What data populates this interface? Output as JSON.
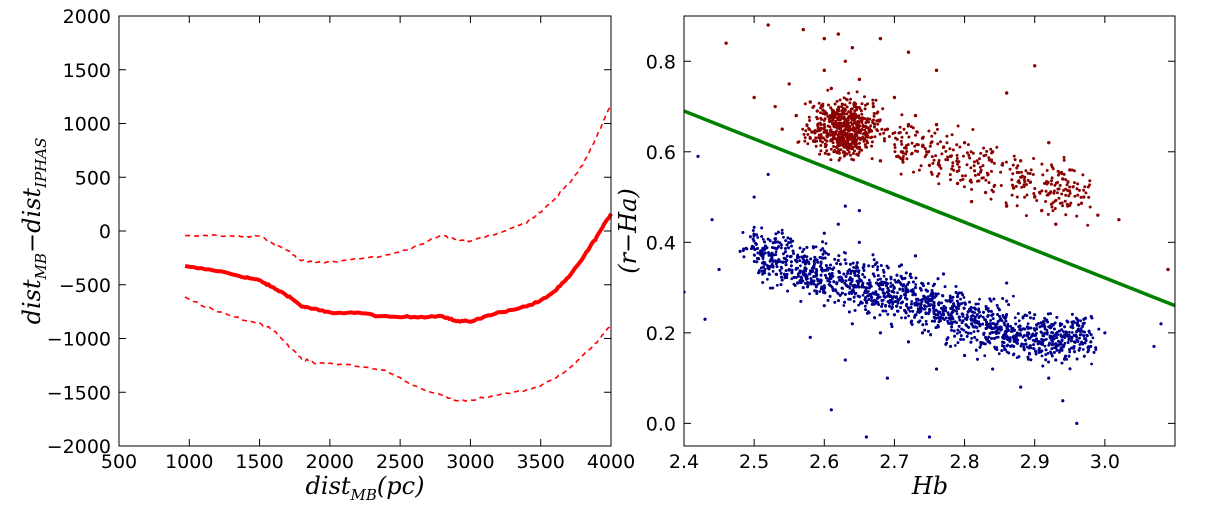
{
  "chart_data": [
    {
      "type": "line",
      "title": "",
      "xlabel": {
        "main": "dist",
        "sub": "MB",
        "suffix": "(pc)"
      },
      "ylabel": {
        "main1": "dist",
        "sub1": "MB",
        "minus": "−",
        "main2": "dist",
        "sub2": "IPHAS"
      },
      "xlim": [
        500,
        4000
      ],
      "ylim": [
        -2000,
        2000
      ],
      "x_ticks": [
        500,
        1000,
        1500,
        2000,
        2500,
        3000,
        3500,
        4000
      ],
      "y_ticks": [
        -2000,
        -1500,
        -1000,
        -500,
        0,
        500,
        1000,
        1500,
        2000
      ],
      "x_tick_labels": [
        "500",
        "1000",
        "1500",
        "2000",
        "2500",
        "3000",
        "3500",
        "4000"
      ],
      "y_tick_labels": [
        "−2000",
        "−1500",
        "−1000",
        "−500",
        "0",
        "500",
        "1000",
        "1500",
        "2000"
      ],
      "series": [
        {
          "name": "mean",
          "style": "solid-thick",
          "color": "#ff0000",
          "x": [
            970,
            1200,
            1400,
            1500,
            1600,
            1700,
            1800,
            1900,
            2000,
            2200,
            2400,
            2600,
            2800,
            2900,
            3000,
            3200,
            3400,
            3500,
            3600,
            3700,
            3800,
            3900,
            4000
          ],
          "y": [
            -330,
            -370,
            -430,
            -460,
            -530,
            -600,
            -700,
            -730,
            -760,
            -760,
            -800,
            -800,
            -790,
            -840,
            -840,
            -760,
            -700,
            -650,
            -560,
            -430,
            -250,
            -50,
            160
          ]
        },
        {
          "name": "upper",
          "style": "dashed",
          "color": "#ff0000",
          "x": [
            970,
            1200,
            1400,
            1500,
            1600,
            1700,
            1800,
            1900,
            2000,
            2200,
            2400,
            2600,
            2800,
            2900,
            3000,
            3200,
            3400,
            3500,
            3600,
            3700,
            3800,
            3900,
            4000
          ],
          "y": [
            -40,
            -40,
            -50,
            -40,
            -120,
            -180,
            -280,
            -290,
            -290,
            -260,
            -230,
            -150,
            -40,
            -80,
            -90,
            -20,
            80,
            180,
            300,
            440,
            620,
            880,
            1180
          ]
        },
        {
          "name": "lower",
          "style": "dashed",
          "color": "#ff0000",
          "x": [
            970,
            1200,
            1400,
            1500,
            1600,
            1700,
            1800,
            1900,
            2000,
            2200,
            2400,
            2600,
            2800,
            2900,
            3000,
            3200,
            3400,
            3500,
            3600,
            3700,
            3800,
            3900,
            4000
          ],
          "y": [
            -620,
            -750,
            -830,
            -860,
            -920,
            -1060,
            -1190,
            -1230,
            -1230,
            -1260,
            -1300,
            -1440,
            -1530,
            -1580,
            -1580,
            -1520,
            -1480,
            -1440,
            -1370,
            -1280,
            -1160,
            -1030,
            -880
          ]
        }
      ]
    },
    {
      "type": "scatter",
      "title": "",
      "xlabel": "Hb",
      "ylabel": "(r−Ha)",
      "xlim": [
        2.4,
        3.1
      ],
      "ylim": [
        -0.05,
        0.9
      ],
      "x_ticks": [
        2.4,
        2.5,
        2.6,
        2.7,
        2.8,
        2.9,
        3.0
      ],
      "y_ticks": [
        0.0,
        0.2,
        0.4,
        0.6,
        0.8
      ],
      "x_tick_labels": [
        "2.4",
        "2.5",
        "2.6",
        "2.7",
        "2.8",
        "2.9",
        "3.0"
      ],
      "y_tick_labels": [
        "0.0",
        "0.2",
        "0.4",
        "0.6",
        "0.8"
      ],
      "divider_line": {
        "color": "#008000",
        "x": [
          2.4,
          3.1
        ],
        "y": [
          0.69,
          0.26
        ]
      },
      "series": [
        {
          "name": "above line",
          "color": "#8b0000",
          "points": [
            [
              2.46,
              0.84
            ],
            [
              2.52,
              0.88
            ],
            [
              2.57,
              0.87
            ],
            [
              2.6,
              0.85
            ],
            [
              2.62,
              0.86
            ],
            [
              2.64,
              0.83
            ],
            [
              2.68,
              0.85
            ],
            [
              2.72,
              0.82
            ],
            [
              2.76,
              0.78
            ],
            [
              2.9,
              0.79
            ],
            [
              2.86,
              0.73
            ],
            [
              2.5,
              0.72
            ],
            [
              2.55,
              0.75
            ],
            [
              2.58,
              0.71
            ],
            [
              2.6,
              0.78
            ],
            [
              2.61,
              0.74
            ],
            [
              2.63,
              0.8
            ],
            [
              2.65,
              0.76
            ],
            [
              2.67,
              0.7
            ],
            [
              2.7,
              0.72
            ],
            [
              2.73,
              0.68
            ],
            [
              2.76,
              0.66
            ],
            [
              2.8,
              0.62
            ],
            [
              2.84,
              0.6
            ],
            [
              2.88,
              0.58
            ],
            [
              2.92,
              0.62
            ],
            [
              2.95,
              0.56
            ],
            [
              2.97,
              0.5
            ],
            [
              2.99,
              0.46
            ],
            [
              2.86,
              0.48
            ],
            [
              2.82,
              0.55
            ],
            [
              2.78,
              0.59
            ],
            [
              2.74,
              0.63
            ],
            [
              2.71,
              0.6
            ],
            [
              2.68,
              0.58
            ],
            [
              2.66,
              0.64
            ],
            [
              2.64,
              0.62
            ],
            [
              2.62,
              0.6
            ],
            [
              2.6,
              0.66
            ],
            [
              2.58,
              0.63
            ],
            [
              2.56,
              0.68
            ],
            [
              2.54,
              0.65
            ],
            [
              2.53,
              0.7
            ],
            [
              2.59,
              0.69
            ],
            [
              2.63,
              0.67
            ],
            [
              2.65,
              0.61
            ],
            [
              2.69,
              0.65
            ],
            [
              2.75,
              0.57
            ],
            [
              2.79,
              0.53
            ],
            [
              2.83,
              0.51
            ],
            [
              2.87,
              0.52
            ],
            [
              2.9,
              0.5
            ],
            [
              2.93,
              0.44
            ],
            [
              3.02,
              0.45
            ],
            [
              3.09,
              0.34
            ],
            [
              2.94,
              0.54
            ],
            [
              2.91,
              0.47
            ],
            [
              2.81,
              0.49
            ],
            [
              2.77,
              0.61
            ],
            [
              2.72,
              0.66
            ]
          ]
        },
        {
          "name": "below line",
          "color": "#00008b",
          "points": [
            [
              2.42,
              0.59
            ],
            [
              2.44,
              0.45
            ],
            [
              2.45,
              0.34
            ],
            [
              2.43,
              0.23
            ],
            [
              2.4,
              0.29
            ],
            [
              2.48,
              0.38
            ],
            [
              2.5,
              0.5
            ],
            [
              2.52,
              0.55
            ],
            [
              2.54,
              0.42
            ],
            [
              2.56,
              0.36
            ],
            [
              2.58,
              0.31
            ],
            [
              2.6,
              0.38
            ],
            [
              2.62,
              0.44
            ],
            [
              2.63,
              0.48
            ],
            [
              2.65,
              0.4
            ],
            [
              2.67,
              0.33
            ],
            [
              2.69,
              0.29
            ],
            [
              2.71,
              0.35
            ],
            [
              2.73,
              0.3
            ],
            [
              2.75,
              0.26
            ],
            [
              2.77,
              0.24
            ],
            [
              2.79,
              0.28
            ],
            [
              2.81,
              0.22
            ],
            [
              2.83,
              0.19
            ],
            [
              2.85,
              0.21
            ],
            [
              2.87,
              0.17
            ],
            [
              2.89,
              0.2
            ],
            [
              2.91,
              0.16
            ],
            [
              2.93,
              0.14
            ],
            [
              2.95,
              0.19
            ],
            [
              2.97,
              0.23
            ],
            [
              2.92,
              0.1
            ],
            [
              2.88,
              0.08
            ],
            [
              2.94,
              0.05
            ],
            [
              2.96,
              0.0
            ],
            [
              2.84,
              0.12
            ],
            [
              2.8,
              0.15
            ],
            [
              2.76,
              0.12
            ],
            [
              2.72,
              0.18
            ],
            [
              2.68,
              0.2
            ],
            [
              2.64,
              0.22
            ],
            [
              2.6,
              0.26
            ],
            [
              2.57,
              0.3
            ],
            [
              2.55,
              0.34
            ],
            [
              2.53,
              0.4
            ],
            [
              2.62,
              0.36
            ],
            [
              2.66,
              0.27
            ],
            [
              2.7,
              0.24
            ],
            [
              2.74,
              0.2
            ],
            [
              2.78,
              0.17
            ],
            [
              2.82,
              0.25
            ],
            [
              2.86,
              0.27
            ],
            [
              2.9,
              0.24
            ],
            [
              2.98,
              0.18
            ],
            [
              3.0,
              0.2
            ],
            [
              3.07,
              0.17
            ],
            [
              3.08,
              0.22
            ],
            [
              2.61,
              0.03
            ],
            [
              2.66,
              -0.03
            ],
            [
              2.75,
              -0.03
            ],
            [
              2.63,
              0.14
            ],
            [
              2.58,
              0.19
            ],
            [
              2.69,
              0.1
            ],
            [
              2.73,
              0.37
            ],
            [
              2.77,
              0.33
            ],
            [
              2.86,
              0.31
            ],
            [
              2.65,
              0.47
            ],
            [
              2.6,
              0.42
            ]
          ]
        }
      ]
    }
  ]
}
